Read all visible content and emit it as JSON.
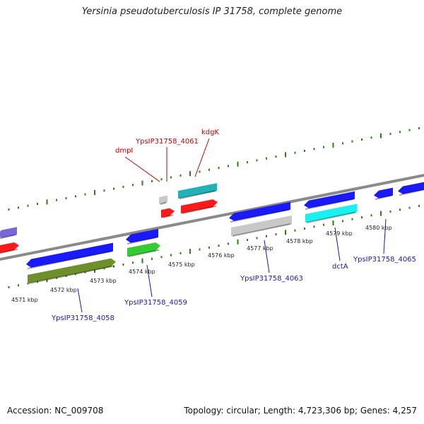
{
  "title": "Yersinia pseudotuberculosis IP 31758, complete genome",
  "footer": {
    "accession": "Accession: NC_009708",
    "stats": "Topology: circular; Length: 4,723,306 bp; Genes: 4,257"
  },
  "colors": {
    "backbone": "#8a8a8a",
    "tick_dots": "#2e7d1a",
    "label_forward": "#cc0000",
    "label_reverse": "#1a1aa6"
  },
  "ticks": [
    {
      "label": "4571 kbp"
    },
    {
      "label": "4572 kbp"
    },
    {
      "label": "4573 kbp"
    },
    {
      "label": "4574 kbp"
    },
    {
      "label": "4575 kbp"
    },
    {
      "label": "4576 kbp"
    },
    {
      "label": "4577 kbp"
    },
    {
      "label": "4578 kbp"
    },
    {
      "label": "4579 kbp"
    },
    {
      "label": "4580 kbp"
    }
  ],
  "gene_labels": [
    {
      "name": "dmpI"
    },
    {
      "name": "YpsIP31758_4061"
    },
    {
      "name": "kdgK"
    },
    {
      "name": "YpsIP31758_4058"
    },
    {
      "name": "YpsIP31758_4059"
    },
    {
      "name": "YpsIP31758_4063"
    },
    {
      "name": "dctA"
    },
    {
      "name": "YpsIP31758_4065"
    }
  ],
  "features": [
    {
      "name": "feature-purple-left",
      "color": "#7b68d8"
    },
    {
      "name": "feature-red-left",
      "color": "#ff1a1a"
    },
    {
      "name": "feature-blue-4058",
      "color": "#1a1aff"
    },
    {
      "name": "feature-olive-4058",
      "color": "#6f8f2a"
    },
    {
      "name": "feature-blue-small",
      "color": "#1a1aff"
    },
    {
      "name": "feature-green-4059",
      "color": "#33cc33"
    },
    {
      "name": "feature-gray-dmpI",
      "color": "#c8c8c8"
    },
    {
      "name": "feature-red-4061",
      "color": "#ff1a1a"
    },
    {
      "name": "feature-teal-kdgK",
      "color": "#20b2b8"
    },
    {
      "name": "feature-red-kdgK",
      "color": "#ff1a1a"
    },
    {
      "name": "feature-blue-4063",
      "color": "#1a1aff"
    },
    {
      "name": "feature-gray-4063",
      "color": "#c8c8c8"
    },
    {
      "name": "feature-blue-dctA",
      "color": "#1a1aff"
    },
    {
      "name": "feature-cyan-dctA",
      "color": "#19f0f0"
    },
    {
      "name": "feature-blue-4065a",
      "color": "#1a1aff"
    },
    {
      "name": "feature-blue-4065b",
      "color": "#1a1aff"
    }
  ]
}
